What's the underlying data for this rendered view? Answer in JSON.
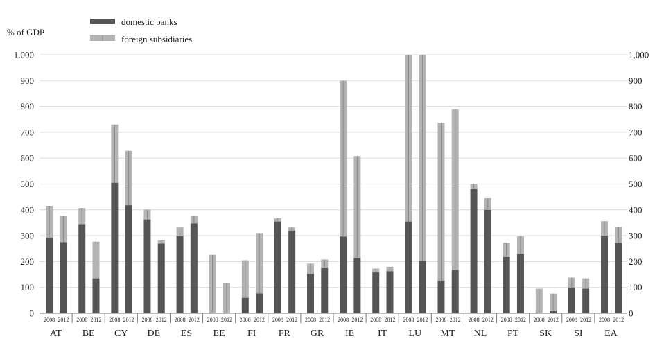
{
  "chart_data": {
    "type": "bar",
    "stacked": true,
    "unit_label": "% of GDP",
    "ylim": [
      0,
      1000
    ],
    "y_ticks": [
      "0",
      "100",
      "200",
      "300",
      "400",
      "500",
      "600",
      "700",
      "800",
      "900",
      "1,000"
    ],
    "grid": true,
    "legend_position": "top-left",
    "legend": [
      {
        "name": "domestic banks",
        "color": "#555555"
      },
      {
        "name": "foreign subsidiaries",
        "color": "#b3b3b3"
      }
    ],
    "years": [
      "2008",
      "2012"
    ],
    "countries": [
      {
        "code": "AT",
        "domestic": [
          293,
          275
        ],
        "foreign": [
          120,
          102
        ]
      },
      {
        "code": "BE",
        "domestic": [
          345,
          135
        ],
        "foreign": [
          62,
          142
        ]
      },
      {
        "code": "CY",
        "domestic": [
          505,
          418
        ],
        "foreign": [
          225,
          210
        ]
      },
      {
        "code": "DE",
        "domestic": [
          363,
          270
        ],
        "foreign": [
          38,
          12
        ]
      },
      {
        "code": "ES",
        "domestic": [
          300,
          348
        ],
        "foreign": [
          32,
          28
        ]
      },
      {
        "code": "EE",
        "domestic": [
          3,
          3
        ],
        "foreign": [
          223,
          115
        ]
      },
      {
        "code": "FI",
        "domestic": [
          60,
          77
        ],
        "foreign": [
          145,
          233
        ]
      },
      {
        "code": "FR",
        "domestic": [
          355,
          320
        ],
        "foreign": [
          12,
          12
        ]
      },
      {
        "code": "GR",
        "domestic": [
          152,
          175
        ],
        "foreign": [
          40,
          33
        ]
      },
      {
        "code": "IE",
        "domestic": [
          297,
          213
        ],
        "foreign": [
          602,
          395
        ]
      },
      {
        "code": "IT",
        "domestic": [
          158,
          163
        ],
        "foreign": [
          15,
          17
        ]
      },
      {
        "code": "LU",
        "domestic": [
          355,
          203
        ],
        "foreign": [
          645,
          797
        ]
      },
      {
        "code": "MT",
        "domestic": [
          127,
          168
        ],
        "foreign": [
          610,
          620
        ]
      },
      {
        "code": "NL",
        "domestic": [
          480,
          400
        ],
        "foreign": [
          20,
          45
        ]
      },
      {
        "code": "PT",
        "domestic": [
          218,
          230
        ],
        "foreign": [
          55,
          68
        ]
      },
      {
        "code": "SK",
        "domestic": [
          3,
          8
        ],
        "foreign": [
          92,
          68
        ]
      },
      {
        "code": "SI",
        "domestic": [
          100,
          95
        ],
        "foreign": [
          38,
          40
        ]
      },
      {
        "code": "EA",
        "domestic": [
          300,
          272
        ],
        "foreign": [
          56,
          62
        ]
      }
    ]
  }
}
